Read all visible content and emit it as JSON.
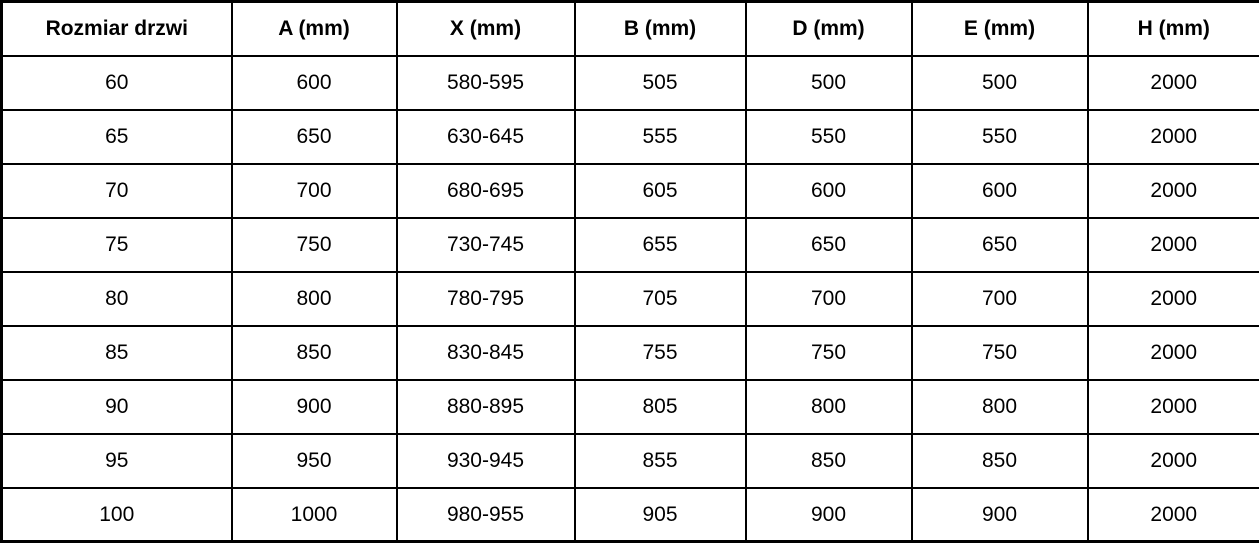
{
  "table": {
    "columns": [
      "Rozmiar drzwi",
      "A (mm)",
      "X (mm)",
      "B (mm)",
      "D (mm)",
      "E (mm)",
      "H (mm)"
    ],
    "rows": [
      [
        "60",
        "600",
        "580-595",
        "505",
        "500",
        "500",
        "2000"
      ],
      [
        "65",
        "650",
        "630-645",
        "555",
        "550",
        "550",
        "2000"
      ],
      [
        "70",
        "700",
        "680-695",
        "605",
        "600",
        "600",
        "2000"
      ],
      [
        "75",
        "750",
        "730-745",
        "655",
        "650",
        "650",
        "2000"
      ],
      [
        "80",
        "800",
        "780-795",
        "705",
        "700",
        "700",
        "2000"
      ],
      [
        "85",
        "850",
        "830-845",
        "755",
        "750",
        "750",
        "2000"
      ],
      [
        "90",
        "900",
        "880-895",
        "805",
        "800",
        "800",
        "2000"
      ],
      [
        "95",
        "950",
        "930-945",
        "855",
        "850",
        "850",
        "2000"
      ],
      [
        "100",
        "1000",
        "980-955",
        "905",
        "900",
        "900",
        "2000"
      ]
    ],
    "colors": {
      "border": "#000000",
      "text": "#000000",
      "background": "#ffffff"
    }
  }
}
